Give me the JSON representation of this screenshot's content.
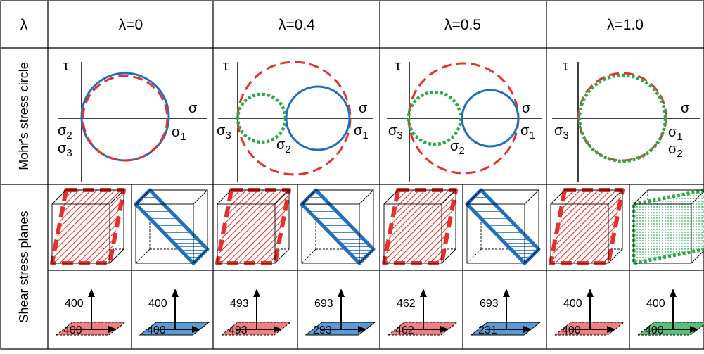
{
  "header": {
    "lambda_symbol": "λ",
    "columns": [
      "λ=0",
      "λ=0.4",
      "λ=0.5",
      "λ=1.0"
    ]
  },
  "rows": {
    "mohr": "Mohr's stress circle",
    "planes": "Shear stress planes"
  },
  "mohr_labels": {
    "tau": "τ",
    "sigma": "σ",
    "s1": "σ",
    "s2": "σ",
    "s3": "σ",
    "sub1": "1",
    "sub2": "2",
    "sub3": "3"
  },
  "forces": [
    {
      "top": "400",
      "bottom": "400"
    },
    {
      "top": "400",
      "bottom": "400"
    },
    {
      "top": "493",
      "bottom": "493"
    },
    {
      "top": "693",
      "bottom": "293"
    },
    {
      "top": "462",
      "bottom": "462"
    },
    {
      "top": "693",
      "bottom": "231"
    },
    {
      "top": "400",
      "bottom": "400"
    },
    {
      "top": "400",
      "bottom": "400"
    }
  ],
  "colors": {
    "red": "#e8302a",
    "blue": "#1f6fc0",
    "green": "#2aaa4a",
    "red_fill": "#f08080",
    "blue_fill": "#5b9bd5",
    "green_fill": "#5bbf7a"
  }
}
